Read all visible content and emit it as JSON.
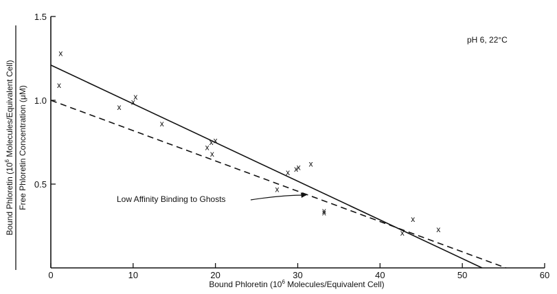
{
  "chart_data": {
    "type": "scatter",
    "title": "",
    "xlabel": "Bound Phloretin (10^6 Molecules/Equivalent Cell)",
    "ylabel_numerator": "Bound Phloretin (10^6 Molecules/Equivalent Cell)",
    "ylabel_denominator": "Free Phloretin Concentration (μM)",
    "xlim": [
      0,
      60
    ],
    "ylim": [
      0,
      1.5
    ],
    "x_ticks": [
      0,
      10,
      20,
      30,
      40,
      50,
      60
    ],
    "x_tick_labels": [
      "0",
      "10",
      "20",
      "30",
      "40",
      "50",
      "60"
    ],
    "y_ticks": [
      0.5,
      1.0,
      1.5
    ],
    "y_tick_labels": [
      "0.5",
      "1.0",
      "1.5"
    ],
    "grid": false,
    "marker_symbol": "x",
    "annotations": {
      "conditions": "pH 6, 22°C",
      "dashed_label": "Low Affinity Binding to Ghosts"
    },
    "series": [
      {
        "type": "scatter",
        "points": [
          {
            "x": 1.2,
            "y": 1.28
          },
          {
            "x": 1.0,
            "y": 1.09
          },
          {
            "x": 8.3,
            "y": 0.96
          },
          {
            "x": 10.0,
            "y": 0.99
          },
          {
            "x": 10.3,
            "y": 1.02
          },
          {
            "x": 13.5,
            "y": 0.86
          },
          {
            "x": 19.0,
            "y": 0.72
          },
          {
            "x": 19.5,
            "y": 0.75
          },
          {
            "x": 20.0,
            "y": 0.76
          },
          {
            "x": 19.6,
            "y": 0.68
          },
          {
            "x": 27.5,
            "y": 0.47
          },
          {
            "x": 28.8,
            "y": 0.57
          },
          {
            "x": 29.8,
            "y": 0.59
          },
          {
            "x": 30.1,
            "y": 0.6
          },
          {
            "x": 31.6,
            "y": 0.62
          },
          {
            "x": 33.2,
            "y": 0.34
          },
          {
            "x": 33.2,
            "y": 0.33
          },
          {
            "x": 42.7,
            "y": 0.21
          },
          {
            "x": 44.0,
            "y": 0.29
          },
          {
            "x": 47.1,
            "y": 0.23
          }
        ]
      },
      {
        "type": "line",
        "style": "solid",
        "points": [
          {
            "x": 0,
            "y": 1.21
          },
          {
            "x": 52.4,
            "y": 0
          }
        ]
      },
      {
        "type": "line",
        "style": "dashed",
        "points": [
          {
            "x": 0,
            "y": 1.0
          },
          {
            "x": 55.3,
            "y": 0
          }
        ]
      }
    ]
  }
}
